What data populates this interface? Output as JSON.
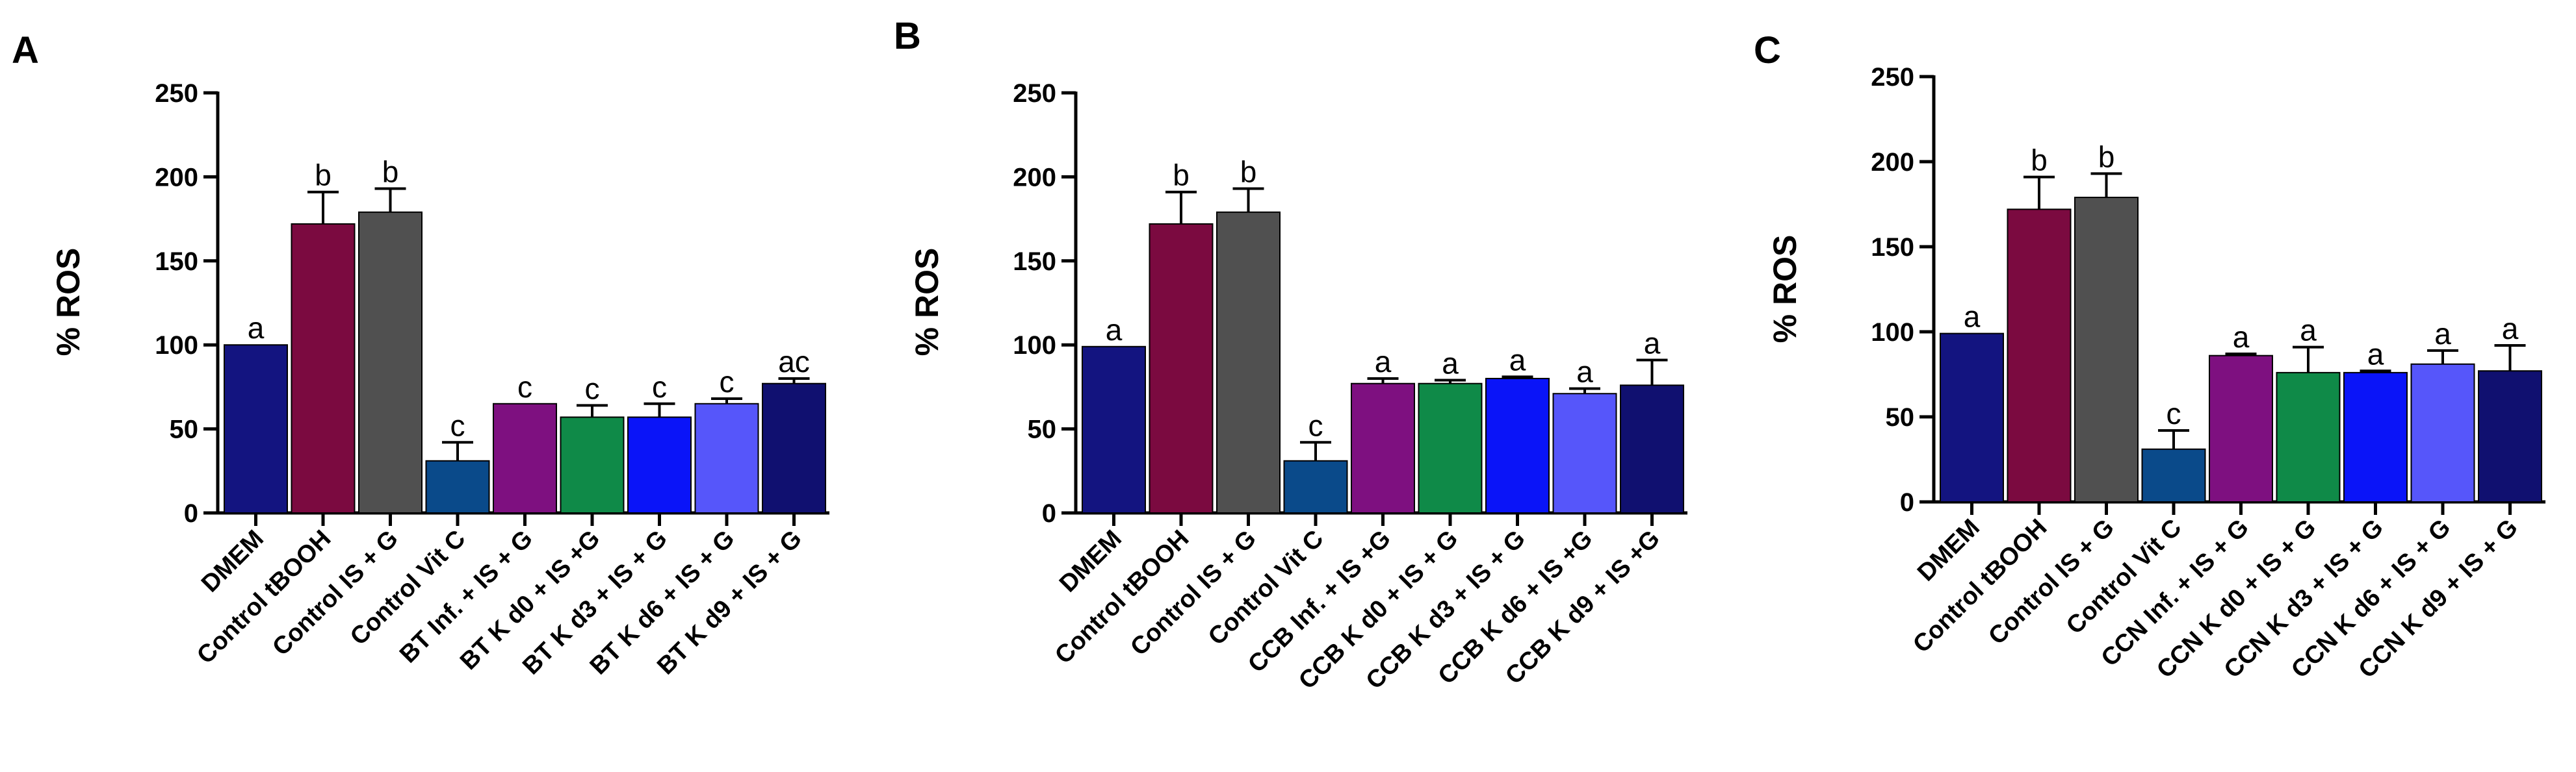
{
  "chart_data": [
    {
      "type": "bar",
      "panel": "A",
      "ylabel": "% ROS",
      "ylim": [
        0,
        250
      ],
      "yticks": [
        0,
        50,
        100,
        150,
        200,
        250
      ],
      "categories": [
        "DMEM",
        "Control tBOOH",
        "Control IS + G",
        "Control Vit C",
        "BT Inf. + IS + G",
        "BT K d0 + IS +G",
        "BT K d3 + IS + G",
        "BT K d6 + IS + G",
        "BT K d9 + IS + G"
      ],
      "values": [
        100,
        172,
        179,
        31,
        65,
        57,
        57,
        65,
        77
      ],
      "errors": [
        0,
        19,
        14,
        11,
        0,
        7,
        8,
        3,
        3
      ],
      "significance": [
        "a",
        "b",
        "b",
        "c",
        "c",
        "c",
        "c",
        "c",
        "ac"
      ],
      "colors": [
        "#131480",
        "#7b0a40",
        "#505050",
        "#0a4a8a",
        "#7e1080",
        "#0f8a48",
        "#0a14f8",
        "#5656fa",
        "#101070"
      ]
    },
    {
      "type": "bar",
      "panel": "B",
      "ylabel": "% ROS",
      "ylim": [
        0,
        250
      ],
      "yticks": [
        0,
        50,
        100,
        150,
        200,
        250
      ],
      "categories": [
        "DMEM",
        "Control tBOOH",
        "Control IS + G",
        "Control Vit C",
        "CCB Inf. + IS +G",
        "CCB K d0 + IS + G",
        "CCB K d3 + IS + G",
        "CCB K d6 + IS +G",
        "CCB K d9 + IS +G"
      ],
      "values": [
        99,
        172,
        179,
        31,
        77,
        77,
        80,
        71,
        76
      ],
      "errors": [
        0,
        19,
        14,
        11,
        3,
        2,
        1,
        3,
        15
      ],
      "significance": [
        "a",
        "b",
        "b",
        "c",
        "a",
        "a",
        "a",
        "a",
        "a"
      ],
      "colors": [
        "#131480",
        "#7b0a40",
        "#505050",
        "#0a4a8a",
        "#7e1080",
        "#0f8a48",
        "#0a14f8",
        "#5656fa",
        "#101070"
      ]
    },
    {
      "type": "bar",
      "panel": "C",
      "ylabel": "% ROS",
      "ylim": [
        0,
        250
      ],
      "yticks": [
        0,
        50,
        100,
        150,
        200,
        250
      ],
      "categories": [
        "DMEM",
        "Control tBOOH",
        "Control IS + G",
        "Control Vit C",
        "CCN Inf. + IS + G",
        "CCN K d0 + IS + G",
        "CCN K d3 + IS + G",
        "CCN K d6 + IS + G",
        "CCN K d9 + IS + G"
      ],
      "values": [
        99,
        172,
        179,
        31,
        86,
        76,
        76,
        81,
        77
      ],
      "errors": [
        0,
        19,
        14,
        11,
        1,
        15,
        1,
        8,
        15
      ],
      "significance": [
        "a",
        "b",
        "b",
        "c",
        "a",
        "a",
        "a",
        "a",
        "a"
      ],
      "colors": [
        "#131480",
        "#7b0a40",
        "#505050",
        "#0a4a8a",
        "#7e1080",
        "#0f8a48",
        "#0a14f8",
        "#5656fa",
        "#101070"
      ]
    }
  ]
}
